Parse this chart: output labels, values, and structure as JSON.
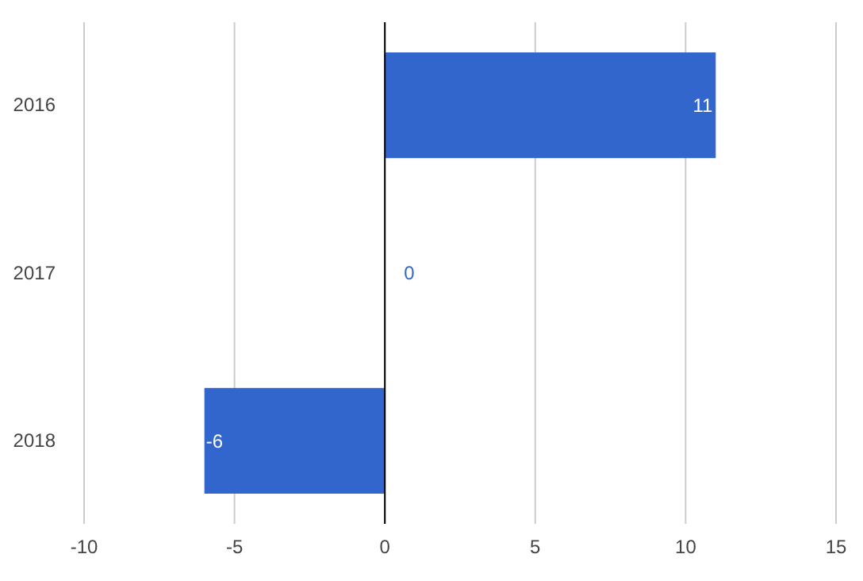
{
  "chart_data": {
    "type": "bar",
    "orientation": "horizontal",
    "categories": [
      "2016",
      "2017",
      "2018"
    ],
    "values": [
      11,
      0,
      -6
    ],
    "color": "#3366cc",
    "xlim": [
      -10,
      15
    ],
    "xticks": [
      -10,
      -5,
      0,
      5,
      10,
      15
    ],
    "grid": "x",
    "data_labels": true
  }
}
